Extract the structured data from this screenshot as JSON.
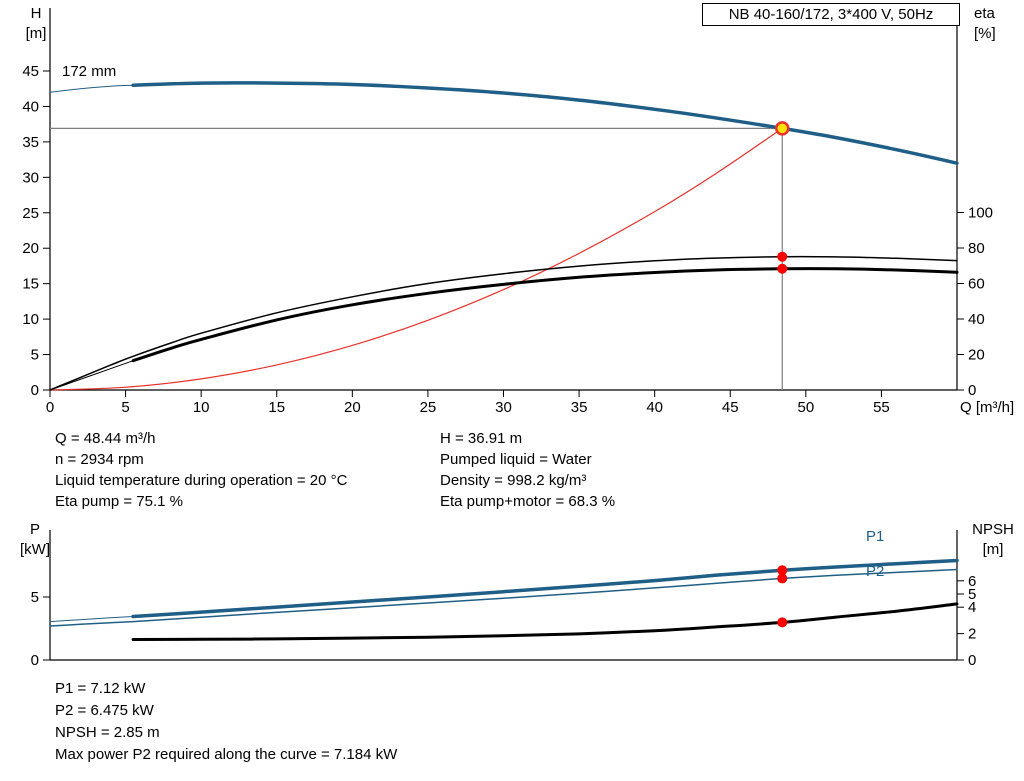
{
  "title_box": "NB 40-160/172, 3*400 V, 50Hz",
  "top_chart_labels": {
    "y_left_title": "H",
    "y_left_unit": "[m]",
    "y_right_title": "eta",
    "y_right_unit": "[%]",
    "x_label": "Q [m³/h]",
    "impeller": "172 mm"
  },
  "bottom_chart_labels": {
    "y_left_title": "P",
    "y_left_unit": "[kW]",
    "y_right_title": "NPSH",
    "y_right_unit": "[m]",
    "p1": "P1",
    "p2": "P2"
  },
  "operating_info": {
    "left": [
      "Q = 48.44 m³/h",
      "n = 2934 rpm",
      "Liquid temperature during operation = 20 °C",
      "Eta pump = 75.1 %"
    ],
    "right": [
      "H = 36.91 m",
      "Pumped liquid = Water",
      "Density = 998.2 kg/m³",
      "Eta pump+motor = 68.3 %"
    ]
  },
  "results": [
    "P1 = 7.12 kW",
    "P2 = 6.475 kW",
    "NPSH = 2.85 m",
    "Max power P2 required along the curve = 7.184 kW"
  ],
  "colors": {
    "curve_blue": "#1f5f87",
    "system_red": "#e8312a",
    "dot_red": "#ff0000",
    "duty_yellow": "#ffe200",
    "crosshair_gray": "#7f7f7f"
  },
  "chart_data": [
    {
      "id": "top",
      "type": "line",
      "title": "NB 40-160/172, 3*400 V, 50Hz",
      "x_axis": {
        "label": "Q [m³/h]",
        "min": 0,
        "max": 60,
        "ticks": [
          0,
          5,
          10,
          15,
          20,
          25,
          30,
          35,
          40,
          45,
          50,
          55
        ]
      },
      "y_left": {
        "key": "H",
        "label": "H [m]",
        "min": 0,
        "max": 54,
        "ticks": [
          0,
          5,
          10,
          15,
          20,
          25,
          30,
          35,
          40,
          45
        ]
      },
      "y_right": {
        "key": "eta",
        "label": "eta [%]",
        "min": 0,
        "max": 107,
        "ticks": [
          0,
          20,
          40,
          60,
          80,
          100
        ]
      },
      "crosshair": {
        "q": 48.44,
        "axis": "H",
        "value": 36.91
      },
      "series": [
        {
          "name": "head-curve-lead",
          "axis": "H",
          "width": 1,
          "color": "#1f5f87",
          "points": [
            [
              0,
              42.0
            ],
            [
              2,
              42.5
            ],
            [
              4,
              42.85
            ],
            [
              5.5,
              43.0
            ]
          ]
        },
        {
          "name": "head-curve",
          "axis": "H",
          "width": 3.5,
          "color": "#1f5f87",
          "points": [
            [
              5.5,
              43.0
            ],
            [
              10,
              43.3
            ],
            [
              15,
              43.3
            ],
            [
              20,
              43.1
            ],
            [
              25,
              42.6
            ],
            [
              30,
              41.9
            ],
            [
              35,
              40.9
            ],
            [
              40,
              39.6
            ],
            [
              44,
              38.4
            ],
            [
              48.44,
              36.91
            ],
            [
              52,
              35.6
            ],
            [
              56,
              33.9
            ],
            [
              60,
              32.0
            ]
          ]
        },
        {
          "name": "system-curve",
          "axis": "H",
          "width": 1.2,
          "color": "#e8312a",
          "points": [
            [
              0,
              0
            ],
            [
              5,
              0.39
            ],
            [
              10,
              1.57
            ],
            [
              15,
              3.54
            ],
            [
              20,
              6.29
            ],
            [
              25,
              9.83
            ],
            [
              30,
              14.16
            ],
            [
              35,
              19.27
            ],
            [
              40,
              25.17
            ],
            [
              44,
              30.45
            ],
            [
              48.44,
              36.91
            ]
          ]
        },
        {
          "name": "eta-pump-curve",
          "axis": "eta",
          "width": 1.5,
          "color": "#000000",
          "points": [
            [
              0,
              0
            ],
            [
              2,
              7
            ],
            [
              4,
              14
            ],
            [
              5.5,
              19
            ],
            [
              8,
              26.5
            ],
            [
              10,
              32
            ],
            [
              15,
              43.5
            ],
            [
              20,
              52.5
            ],
            [
              25,
              60
            ],
            [
              30,
              65.5
            ],
            [
              35,
              69.8
            ],
            [
              40,
              72.8
            ],
            [
              44,
              74.3
            ],
            [
              48.44,
              75.1
            ],
            [
              52,
              75.0
            ],
            [
              56,
              74.2
            ],
            [
              60,
              72.9
            ]
          ]
        },
        {
          "name": "eta-pump-motor-lead",
          "axis": "eta",
          "width": 1,
          "color": "#000000",
          "points": [
            [
              0,
              0
            ],
            [
              2,
              6
            ],
            [
              4,
              12
            ],
            [
              5.5,
              16.5
            ]
          ]
        },
        {
          "name": "eta-pump-motor-curve",
          "axis": "eta",
          "width": 3,
          "color": "#000000",
          "points": [
            [
              5.5,
              16.5
            ],
            [
              8,
              23.5
            ],
            [
              10,
              28.5
            ],
            [
              15,
              39.5
            ],
            [
              20,
              48
            ],
            [
              25,
              54.5
            ],
            [
              30,
              59.5
            ],
            [
              35,
              63.5
            ],
            [
              40,
              66.2
            ],
            [
              44,
              67.6
            ],
            [
              48.44,
              68.3
            ],
            [
              52,
              68.3
            ],
            [
              56,
              67.6
            ],
            [
              60,
              66.3
            ]
          ]
        }
      ],
      "markers": [
        {
          "name": "eta-pump-point",
          "axis": "eta",
          "q": 48.44,
          "value": 75.1,
          "r": 5,
          "fill": "#ff0000"
        },
        {
          "name": "eta-pump-motor-point",
          "axis": "eta",
          "q": 48.44,
          "value": 68.3,
          "r": 5,
          "fill": "#ff0000"
        },
        {
          "name": "duty-point",
          "axis": "H",
          "q": 48.44,
          "value": 36.91,
          "r": 6,
          "fill": "#ffe200",
          "stroke": "#e8312a",
          "stroke_width": 2.5
        }
      ]
    },
    {
      "id": "bottom",
      "type": "line",
      "x_axis": {
        "label": "",
        "min": 0,
        "max": 60,
        "ticks": []
      },
      "y_left": {
        "key": "P",
        "label": "P [kW]",
        "min": 0,
        "max": 10.3,
        "ticks": [
          0,
          5
        ]
      },
      "y_right": {
        "key": "NPSH",
        "label": "NPSH [m]",
        "min": 0,
        "max": 9.8,
        "ticks": [
          0,
          2,
          4,
          5,
          6
        ]
      },
      "series": [
        {
          "name": "p1-lead",
          "axis": "P",
          "width": 1,
          "color": "#1f5f87",
          "points": [
            [
              0,
              3.05
            ],
            [
              2,
              3.2
            ],
            [
              4,
              3.35
            ],
            [
              5.5,
              3.45
            ]
          ]
        },
        {
          "name": "p1-curve",
          "axis": "P",
          "width": 3.5,
          "color": "#1f5f87",
          "points": [
            [
              5.5,
              3.45
            ],
            [
              10,
              3.8
            ],
            [
              15,
              4.2
            ],
            [
              20,
              4.6
            ],
            [
              25,
              5.0
            ],
            [
              30,
              5.42
            ],
            [
              35,
              5.85
            ],
            [
              40,
              6.3
            ],
            [
              44,
              6.72
            ],
            [
              48.44,
              7.12
            ],
            [
              52,
              7.38
            ],
            [
              56,
              7.64
            ],
            [
              60,
              7.9
            ]
          ]
        },
        {
          "name": "p2-curve",
          "axis": "P",
          "width": 1.5,
          "color": "#1f5f87",
          "points": [
            [
              0,
              2.7
            ],
            [
              2,
              2.83
            ],
            [
              4,
              2.96
            ],
            [
              5.5,
              3.05
            ],
            [
              10,
              3.4
            ],
            [
              15,
              3.78
            ],
            [
              20,
              4.15
            ],
            [
              25,
              4.52
            ],
            [
              30,
              4.9
            ],
            [
              35,
              5.3
            ],
            [
              40,
              5.72
            ],
            [
              44,
              6.08
            ],
            [
              48.44,
              6.475
            ],
            [
              52,
              6.72
            ],
            [
              56,
              6.95
            ],
            [
              60,
              7.184
            ]
          ]
        },
        {
          "name": "npsh-curve",
          "axis": "NPSH",
          "width": 3,
          "color": "#000000",
          "points": [
            [
              5.5,
              1.55
            ],
            [
              10,
              1.57
            ],
            [
              15,
              1.6
            ],
            [
              20,
              1.66
            ],
            [
              25,
              1.73
            ],
            [
              30,
              1.83
            ],
            [
              35,
              1.98
            ],
            [
              40,
              2.22
            ],
            [
              44,
              2.5
            ],
            [
              48.44,
              2.85
            ],
            [
              52,
              3.25
            ],
            [
              56,
              3.7
            ],
            [
              60,
              4.25
            ]
          ]
        }
      ],
      "markers": [
        {
          "name": "p1-point",
          "axis": "P",
          "q": 48.44,
          "value": 7.12,
          "r": 5,
          "fill": "#ff0000"
        },
        {
          "name": "p2-point",
          "axis": "P",
          "q": 48.44,
          "value": 6.475,
          "r": 5,
          "fill": "#ff0000"
        },
        {
          "name": "npsh-point",
          "axis": "NPSH",
          "q": 48.44,
          "value": 2.85,
          "r": 5,
          "fill": "#ff0000"
        }
      ]
    }
  ]
}
